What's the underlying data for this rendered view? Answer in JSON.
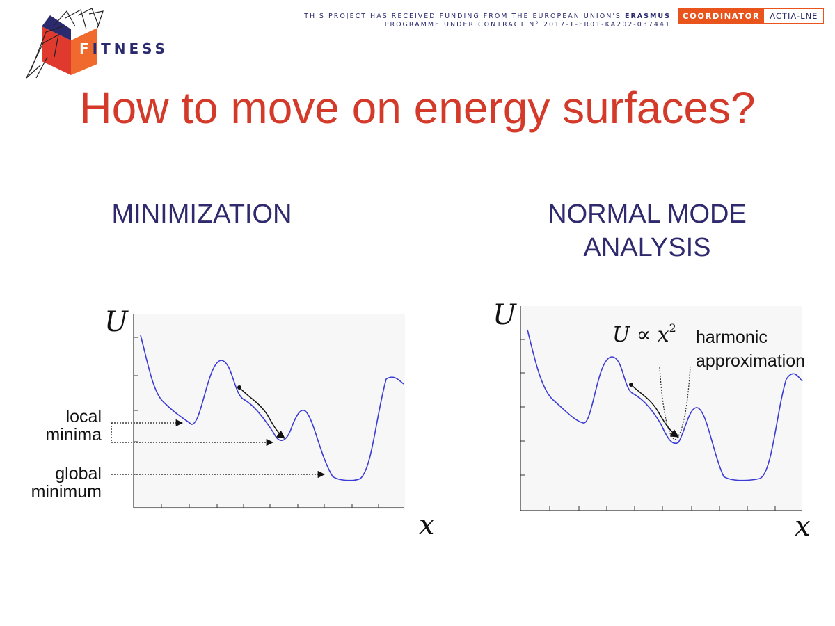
{
  "header": {
    "logo_text": "FITNESS",
    "logo_first_letter": "F",
    "logo_rest": "ITNESS",
    "funding_line1_prefix": "THIS PROJECT HAS RECEIVED FUNDING FROM THE EUROPEAN UNION'S ",
    "funding_line1_bold": "ERASMUS",
    "funding_line2": "PROGRAMME UNDER CONTRACT N° 2017-1-FR01-KA202-037441",
    "coordinator_label": "COORDINATOR",
    "coordinator_name": "ACTIA-LNE"
  },
  "title": "How to move on energy surfaces?",
  "left": {
    "heading": "MINIMIZATION",
    "y_label": "U",
    "x_label": "x",
    "local_label_1": "local",
    "local_label_2": "minima",
    "global_label_1": "global",
    "global_label_2": "minimum"
  },
  "right": {
    "heading_1": "NORMAL MODE",
    "heading_2": "ANALYSIS",
    "y_label": "U",
    "x_label": "x",
    "formula_u": "U",
    "formula_prop": "∝",
    "formula_x": "x",
    "formula_exp": "2",
    "harmonic_1": "harmonic",
    "harmonic_2": "approximation"
  },
  "colors": {
    "title": "#d43a2a",
    "heading": "#2e2a6d",
    "curve": "#3b3bd6",
    "accent": "#e8541b"
  }
}
